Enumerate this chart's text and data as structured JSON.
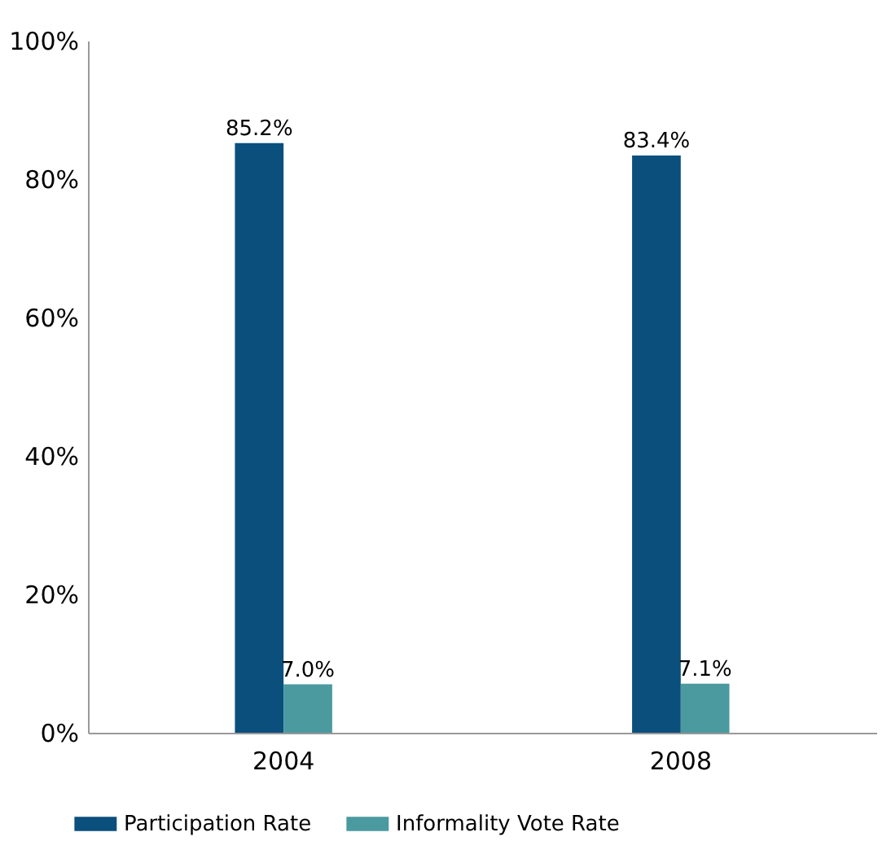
{
  "chart_data": {
    "type": "bar",
    "categories": [
      "2004",
      "2008"
    ],
    "series": [
      {
        "name": "Participation Rate",
        "color": "#0b4f7c",
        "values": [
          85.2,
          83.4
        ],
        "value_labels": [
          "85.2%",
          "83.4%"
        ]
      },
      {
        "name": "Informality Vote Rate",
        "color": "#4a9aa0",
        "values": [
          7.0,
          7.1
        ],
        "value_labels": [
          "7.0%",
          "7.1%"
        ]
      }
    ],
    "ylim": [
      0,
      100
    ],
    "yticks": [
      {
        "value": 0,
        "label": "0%"
      },
      {
        "value": 20,
        "label": "20%"
      },
      {
        "value": 40,
        "label": "40%"
      },
      {
        "value": 60,
        "label": "60%"
      },
      {
        "value": 80,
        "label": "80%"
      },
      {
        "value": 100,
        "label": "100%"
      }
    ],
    "grid": false,
    "legend": "bottom"
  }
}
